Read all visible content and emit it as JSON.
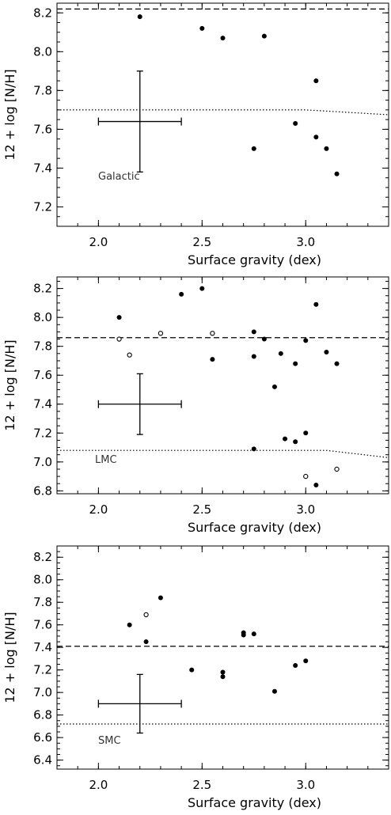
{
  "chart_data": [
    {
      "type": "scatter",
      "ylabel": "12 + log [N/H]",
      "xlabel": "Surface gravity (dex)",
      "annotation": "Galactic",
      "xlim": [
        1.8,
        3.4
      ],
      "ylim": [
        7.1,
        8.25
      ],
      "xticks": [
        2.0,
        2.5,
        3.0
      ],
      "xtick_labels": [
        "2.0",
        "2.5",
        "3.0"
      ],
      "yticks": [
        7.2,
        7.4,
        7.6,
        7.8,
        8.0,
        8.2
      ],
      "ytick_labels": [
        "7.2",
        "7.4",
        "7.6",
        "7.8",
        "8.0",
        "8.2"
      ],
      "xminor": 0.1,
      "yminor": 0.05,
      "dashed_line_y": 8.22,
      "dotted_line": [
        [
          1.8,
          7.7
        ],
        [
          3.0,
          7.7
        ],
        [
          3.4,
          7.675
        ]
      ],
      "errorbar": {
        "x": 2.2,
        "y": 7.64,
        "xerr": 0.2,
        "yerr": 0.26
      },
      "series": [
        {
          "marker": "filled",
          "points": [
            [
              2.2,
              8.18
            ],
            [
              2.5,
              8.12
            ],
            [
              2.6,
              8.07
            ],
            [
              2.8,
              8.08
            ],
            [
              3.05,
              7.85
            ],
            [
              2.95,
              7.63
            ],
            [
              3.05,
              7.56
            ],
            [
              2.75,
              7.5
            ],
            [
              3.1,
              7.5
            ],
            [
              3.15,
              7.37
            ]
          ]
        }
      ]
    },
    {
      "type": "scatter",
      "ylabel": "12 + log [N/H]",
      "xlabel": "Surface gravity (dex)",
      "annotation": "LMC",
      "xlim": [
        1.8,
        3.4
      ],
      "ylim": [
        6.78,
        8.28
      ],
      "xticks": [
        2.0,
        2.5,
        3.0
      ],
      "xtick_labels": [
        "2.0",
        "2.5",
        "3.0"
      ],
      "yticks": [
        6.8,
        7.0,
        7.2,
        7.4,
        7.6,
        7.8,
        8.0,
        8.2
      ],
      "ytick_labels": [
        "6.8",
        "7.0",
        "7.2",
        "7.4",
        "7.6",
        "7.8",
        "8.0",
        "8.2"
      ],
      "xminor": 0.1,
      "yminor": 0.05,
      "dashed_line_y": 7.86,
      "dotted_line": [
        [
          1.8,
          7.08
        ],
        [
          3.1,
          7.08
        ],
        [
          3.4,
          7.03
        ]
      ],
      "errorbar": {
        "x": 2.2,
        "y": 7.4,
        "xerr": 0.2,
        "yerr": 0.21
      },
      "series": [
        {
          "marker": "filled",
          "points": [
            [
              2.1,
              8.0
            ],
            [
              2.4,
              8.16
            ],
            [
              2.5,
              8.2
            ],
            [
              3.05,
              8.09
            ],
            [
              2.75,
              7.9
            ],
            [
              2.8,
              7.85
            ],
            [
              3.0,
              7.84
            ],
            [
              2.75,
              7.73
            ],
            [
              2.55,
              7.71
            ],
            [
              2.88,
              7.75
            ],
            [
              3.1,
              7.76
            ],
            [
              2.95,
              7.68
            ],
            [
              3.15,
              7.68
            ],
            [
              2.85,
              7.52
            ],
            [
              2.9,
              7.16
            ],
            [
              2.95,
              7.14
            ],
            [
              3.0,
              7.2
            ],
            [
              2.75,
              7.09
            ],
            [
              3.05,
              6.84
            ]
          ]
        },
        {
          "marker": "open",
          "points": [
            [
              2.1,
              7.85
            ],
            [
              2.3,
              7.89
            ],
            [
              2.55,
              7.89
            ],
            [
              2.15,
              7.74
            ],
            [
              3.0,
              6.9
            ],
            [
              3.15,
              6.95
            ]
          ]
        }
      ]
    },
    {
      "type": "scatter",
      "ylabel": "12 + log [N/H]",
      "xlabel": "Surface gravity (dex)",
      "annotation": "SMC",
      "xlim": [
        1.8,
        3.4
      ],
      "ylim": [
        6.32,
        8.3
      ],
      "xticks": [
        2.0,
        2.5,
        3.0
      ],
      "xtick_labels": [
        "2.0",
        "2.5",
        "3.0"
      ],
      "yticks": [
        6.4,
        6.6,
        6.8,
        7.0,
        7.2,
        7.4,
        7.6,
        7.8,
        8.0,
        8.2
      ],
      "ytick_labels": [
        "6.4",
        "6.6",
        "6.8",
        "7.0",
        "7.2",
        "7.4",
        "7.6",
        "7.8",
        "8.0",
        "8.2"
      ],
      "xminor": 0.1,
      "yminor": 0.05,
      "dashed_line_y": 7.41,
      "dotted_line": [
        [
          1.8,
          6.72
        ],
        [
          3.4,
          6.72
        ]
      ],
      "errorbar": {
        "x": 2.2,
        "y": 6.9,
        "xerr": 0.2,
        "yerr": 0.26
      },
      "series": [
        {
          "marker": "filled",
          "points": [
            [
              2.15,
              7.6
            ],
            [
              2.3,
              7.84
            ],
            [
              2.23,
              7.45
            ],
            [
              2.45,
              7.2
            ],
            [
              2.6,
              7.18
            ],
            [
              2.6,
              7.14
            ],
            [
              2.7,
              7.53
            ],
            [
              2.75,
              7.52
            ],
            [
              2.7,
              7.51
            ],
            [
              2.85,
              7.01
            ],
            [
              2.95,
              7.24
            ],
            [
              3.0,
              7.28
            ]
          ]
        },
        {
          "marker": "open",
          "points": [
            [
              2.23,
              7.69
            ]
          ]
        }
      ]
    }
  ]
}
